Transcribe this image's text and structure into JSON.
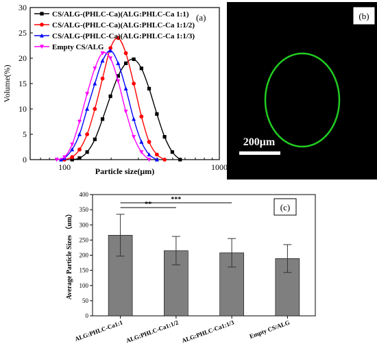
{
  "chart_data": [
    {
      "panel": "(a)",
      "type": "line",
      "xlabel": "Particle size(μm)",
      "ylabel": "Volume(%)",
      "xscale": "log",
      "xlim": [
        60,
        1000
      ],
      "ylim": [
        0,
        30
      ],
      "xticks": [
        100,
        1000
      ],
      "xtick_labels": [
        "100",
        "1000"
      ],
      "yticks": [
        0,
        5,
        10,
        15,
        20,
        25,
        30
      ],
      "legend_placement": "top-left",
      "series": [
        {
          "name": "CS/ALG-(PHLC-Ca)(ALG:PHLC-Ca 1:1)",
          "color": "#000000",
          "marker": "square",
          "x": [
            112,
            125,
            140,
            157,
            176,
            198,
            222,
            249,
            280,
            314,
            352,
            395,
            443,
            497,
            558
          ],
          "y": [
            0,
            0.3,
            1.5,
            4,
            8,
            12.5,
            16.5,
            19,
            19.8,
            18,
            14,
            9,
            4.5,
            1.5,
            0
          ]
        },
        {
          "name": "CS/ALG-(PHLC-Ca)(ALG:PHLC-Ca 1:1/2)",
          "color": "#ff0000",
          "marker": "circle",
          "x": [
            100,
            112,
            125,
            140,
            157,
            176,
            198,
            222,
            249,
            280,
            314,
            352,
            395,
            443
          ],
          "y": [
            0,
            0.5,
            2,
            5,
            10,
            16,
            22,
            24,
            21,
            15,
            8.5,
            3.5,
            1,
            0
          ]
        },
        {
          "name": "CS/ALG-(PHLC-Ca)(ALG:PHLC-Ca 1:1/3)",
          "color": "#0000ff",
          "marker": "triangle-up",
          "x": [
            95,
            100,
            112,
            125,
            140,
            157,
            176,
            198,
            222,
            249,
            280,
            314,
            352,
            395
          ],
          "y": [
            0,
            0.3,
            2,
            5,
            10,
            15,
            19.5,
            21.5,
            19,
            14,
            8,
            3.5,
            1,
            0
          ]
        },
        {
          "name": "Empty CS/ALG",
          "color": "#ff00ff",
          "marker": "triangle-down",
          "x": [
            89,
            100,
            112,
            125,
            140,
            157,
            176,
            198,
            222,
            249,
            280,
            314,
            352
          ],
          "y": [
            0,
            0.5,
            3,
            7.5,
            13,
            18,
            21,
            20,
            15.5,
            9.5,
            4.5,
            1.5,
            0
          ]
        }
      ]
    },
    {
      "panel": "(c)",
      "type": "bar",
      "ylabel": "Average Particle Sizes （um）",
      "ylim": [
        0,
        400
      ],
      "yticks": [
        0,
        50,
        100,
        150,
        200,
        250,
        300,
        350,
        400
      ],
      "categories": [
        "ALG:PHLC-Ca1:1",
        "ALG:PHLC-Ca1:1/2",
        "ALG:PHLC-Ca1:1/3",
        "Empty CS/ALG"
      ],
      "values": [
        266,
        215,
        208,
        189
      ],
      "error": [
        69,
        47,
        47,
        46
      ],
      "bar_color": "#7f7f7f",
      "significance": [
        {
          "from": 0,
          "to": 1,
          "label": "**"
        },
        {
          "from": 0,
          "to": 2,
          "label": "***"
        }
      ]
    }
  ],
  "panels": {
    "a_label": "(a)",
    "b_label": "(b)",
    "c_label": "(c)",
    "scale_bar_label": "200μm",
    "micrograph_bg": "#000000",
    "ring_color": "#22cc22"
  }
}
